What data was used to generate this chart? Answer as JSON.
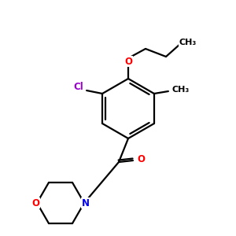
{
  "background_color": "#ffffff",
  "bond_color": "#000000",
  "atom_colors": {
    "O": "#ff0000",
    "N": "#0000ff",
    "Cl": "#9900cc",
    "C": "#000000"
  },
  "figsize": [
    3.0,
    3.0
  ],
  "dpi": 100
}
